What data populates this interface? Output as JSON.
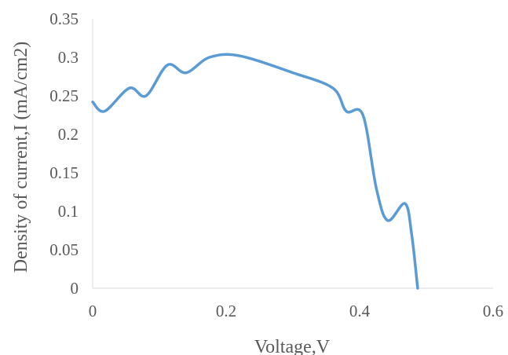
{
  "chart_data": {
    "type": "line",
    "title": "",
    "xlabel": "Voltage,V",
    "ylabel": "Density of current,I (mA/cm2)",
    "xlim": [
      0,
      0.6
    ],
    "ylim": [
      0,
      0.35
    ],
    "x_ticks": [
      "0",
      "0.2",
      "0.4",
      "0.6"
    ],
    "y_ticks": [
      "0",
      "0.05",
      "0.1",
      "0.15",
      "0.2",
      "0.25",
      "0.3",
      "0.35"
    ],
    "grid": false,
    "legend": "none",
    "line_color": "#5B9BD5",
    "axis_color": "#D9D9D9",
    "series": [
      {
        "x": [
          0.0,
          0.018,
          0.055,
          0.08,
          0.112,
          0.14,
          0.175,
          0.22,
          0.3,
          0.36,
          0.38,
          0.405,
          0.425,
          0.442,
          0.468,
          0.478,
          0.487
        ],
        "y": [
          0.242,
          0.23,
          0.26,
          0.25,
          0.29,
          0.28,
          0.3,
          0.302,
          0.28,
          0.26,
          0.23,
          0.225,
          0.13,
          0.088,
          0.11,
          0.07,
          0.0
        ]
      }
    ]
  }
}
